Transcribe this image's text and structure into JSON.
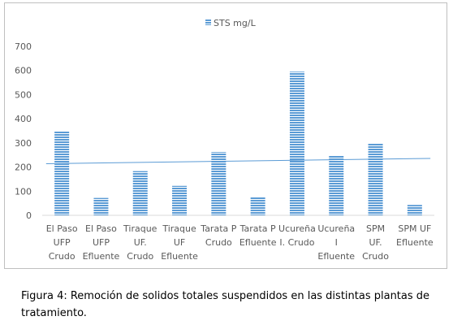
{
  "chart_data": {
    "type": "bar",
    "categories": [
      [
        "El Paso",
        "UFP",
        "Crudo"
      ],
      [
        "El Paso",
        "UFP",
        "Efluente"
      ],
      [
        "Tiraque",
        "UF.",
        "Crudo"
      ],
      [
        "Tiraque",
        "UF",
        "Efluente"
      ],
      [
        "Tarata P",
        "Crudo"
      ],
      [
        "Tarata P",
        "Efluente"
      ],
      [
        "Ucureña",
        "I. Crudo"
      ],
      [
        "Ucureña",
        "I",
        "Efluente"
      ],
      [
        "SPM",
        "UF.",
        "Crudo"
      ],
      [
        "SPM   UF",
        "Efluente"
      ]
    ],
    "series": [
      {
        "name": "STS mg/L",
        "values": [
          350,
          72,
          183,
          122,
          262,
          75,
          595,
          247,
          298,
          43
        ],
        "color": "#5b9bd5"
      }
    ],
    "trendline": {
      "type": "linear",
      "color": "#5b9bd5"
    },
    "ylim": [
      0,
      700
    ],
    "yticks": [
      "0",
      "100",
      "200",
      "300",
      "400",
      "500",
      "600",
      "700"
    ],
    "legend_position": "top",
    "grid": false
  },
  "caption": "Figura 4: Remoción de solidos totales suspendidos en las distintas plantas de tratamiento."
}
